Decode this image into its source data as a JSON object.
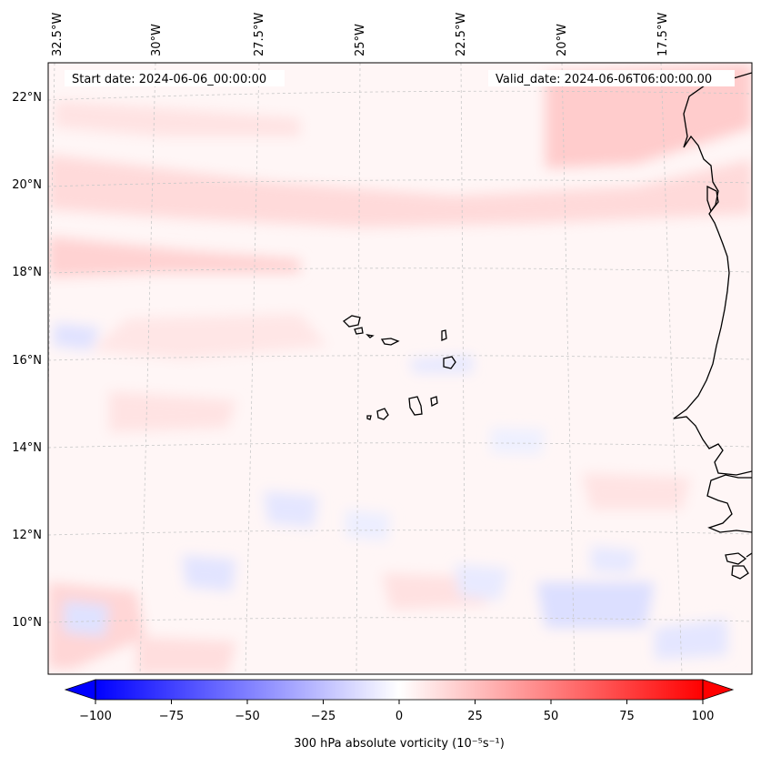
{
  "map": {
    "start_label": "Start date: 2024-06-06_00:00:00",
    "valid_label": "Valid_date: 2024-06-06T06:00:00.00",
    "lon_labels": [
      "32.5°W",
      "30°W",
      "27.5°W",
      "25°W",
      "22.5°W",
      "20°W",
      "17.5°W"
    ],
    "lat_labels": [
      "22°N",
      "20°N",
      "18°N",
      "16°N",
      "14°N",
      "12°N",
      "10°N"
    ],
    "field": "300 hPa absolute vorticity",
    "colors": {
      "negative_max": "#0000ff",
      "positive_max": "#ff0000",
      "zero": "#ffffff",
      "coastline": "#000000"
    }
  },
  "colorbar": {
    "label": "300 hPa absolute vorticity (10⁻⁵s⁻¹)",
    "ticks": [
      "−100",
      "−75",
      "−50",
      "−25",
      "0",
      "25",
      "50",
      "75",
      "100"
    ],
    "range": [
      -100,
      100
    ],
    "extend": "both"
  }
}
